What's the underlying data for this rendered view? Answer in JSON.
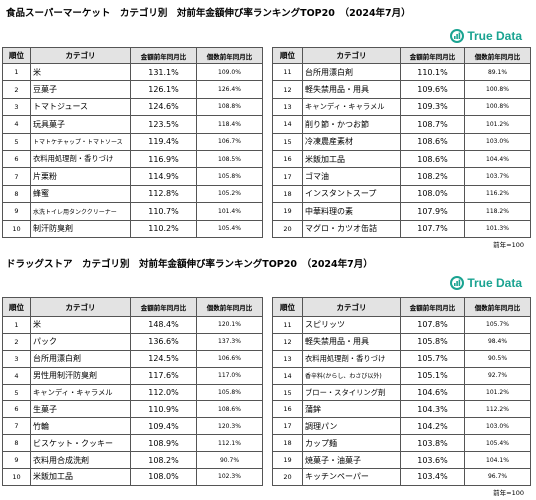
{
  "sections": [
    {
      "title": "食品スーパーマーケット　カテゴリ別　対前年金額伸び率ランキングTOP20　（2024年7月）",
      "logo": "True Data",
      "headers": [
        "順位",
        "カテゴリ",
        "金額前年同月比",
        "個数前年同月比"
      ],
      "tables": [
        {
          "rows": [
            [
              "1",
              "米",
              "131.1%",
              "109.0%"
            ],
            [
              "2",
              "豆菓子",
              "126.1%",
              "126.4%"
            ],
            [
              "3",
              "トマトジュース",
              "124.6%",
              "108.8%"
            ],
            [
              "4",
              "玩具菓子",
              "123.5%",
              "118.4%"
            ],
            [
              "5",
              "トマトケチャップ・トマトソース",
              "119.4%",
              "106.7%"
            ],
            [
              "6",
              "衣料用処理剤・香りづけ",
              "116.9%",
              "108.5%"
            ],
            [
              "7",
              "片栗粉",
              "114.9%",
              "105.8%"
            ],
            [
              "8",
              "蜂蜜",
              "112.8%",
              "105.2%"
            ],
            [
              "9",
              "水洗トイレ用タンククリーナー",
              "110.7%",
              "101.4%"
            ],
            [
              "10",
              "制汗防臭剤",
              "110.2%",
              "105.4%"
            ]
          ]
        },
        {
          "rows": [
            [
              "11",
              "台所用漂白剤",
              "110.1%",
              "89.1%"
            ],
            [
              "12",
              "軽失禁用品・用具",
              "109.6%",
              "100.8%"
            ],
            [
              "13",
              "キャンディ・キャラメル",
              "109.3%",
              "100.8%"
            ],
            [
              "14",
              "削り節・かつお節",
              "108.7%",
              "101.2%"
            ],
            [
              "15",
              "冷凍農産素材",
              "108.6%",
              "103.0%"
            ],
            [
              "16",
              "米飯加工品",
              "108.6%",
              "104.4%"
            ],
            [
              "17",
              "ゴマ油",
              "108.2%",
              "103.7%"
            ],
            [
              "18",
              "インスタントスープ",
              "108.0%",
              "116.2%"
            ],
            [
              "19",
              "中華料理の素",
              "107.9%",
              "118.2%"
            ],
            [
              "20",
              "マグロ・カツオ缶詰",
              "107.7%",
              "101.3%"
            ]
          ]
        }
      ],
      "note": "前年=100"
    },
    {
      "title": "ドラッグストア　カテゴリ別　対前年金額伸び率ランキングTOP20　（2024年7月）",
      "logo": "True Data",
      "headers": [
        "順位",
        "カテゴリ",
        "金額前年同月比",
        "個数前年同月比"
      ],
      "tables": [
        {
          "rows": [
            [
              "1",
              "米",
              "148.4%",
              "120.1%"
            ],
            [
              "2",
              "パック",
              "136.6%",
              "137.3%"
            ],
            [
              "3",
              "台所用漂白剤",
              "124.5%",
              "106.6%"
            ],
            [
              "4",
              "男性用制汗防臭剤",
              "117.6%",
              "117.0%"
            ],
            [
              "5",
              "キャンディ・キャラメル",
              "112.0%",
              "105.8%"
            ],
            [
              "6",
              "生菓子",
              "110.9%",
              "108.6%"
            ],
            [
              "7",
              "竹輪",
              "109.4%",
              "120.3%"
            ],
            [
              "8",
              "ビスケット・クッキー",
              "108.9%",
              "112.1%"
            ],
            [
              "9",
              "衣料用合成洗剤",
              "108.2%",
              "90.7%"
            ],
            [
              "10",
              "米飯加工品",
              "108.0%",
              "102.3%"
            ]
          ]
        },
        {
          "rows": [
            [
              "11",
              "スピリッツ",
              "107.8%",
              "105.7%"
            ],
            [
              "12",
              "軽失禁用品・用具",
              "105.8%",
              "98.4%"
            ],
            [
              "13",
              "衣料用処理剤・香りづけ",
              "105.7%",
              "90.5%"
            ],
            [
              "14",
              "香辛料(からし、わさび以外)",
              "105.1%",
              "92.7%"
            ],
            [
              "15",
              "ブロー・スタイリング剤",
              "104.6%",
              "101.2%"
            ],
            [
              "16",
              "蒲鉾",
              "104.3%",
              "112.2%"
            ],
            [
              "17",
              "調理パン",
              "104.2%",
              "103.0%"
            ],
            [
              "18",
              "カップ麺",
              "103.8%",
              "105.4%"
            ],
            [
              "19",
              "焼菓子・油菓子",
              "103.6%",
              "104.1%"
            ],
            [
              "20",
              "キッチンペーパー",
              "103.4%",
              "96.7%"
            ]
          ]
        }
      ],
      "note": "前年=100"
    }
  ]
}
